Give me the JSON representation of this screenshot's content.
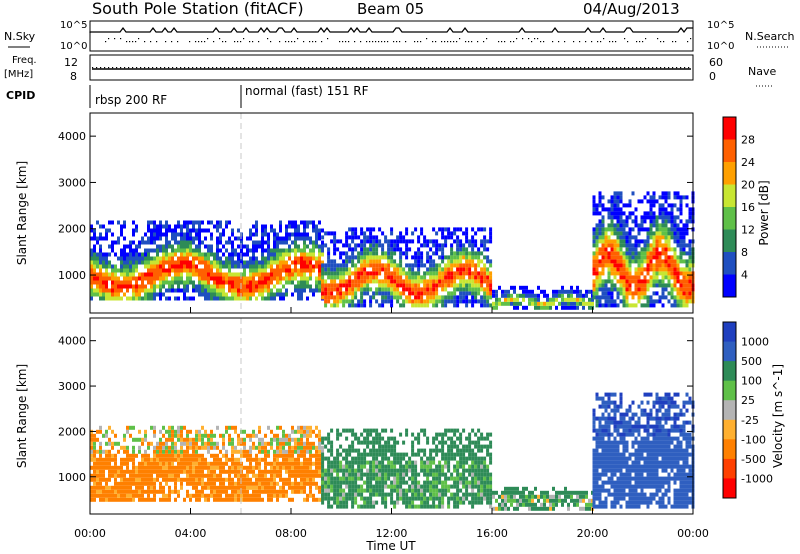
{
  "header": {
    "station": "South Pole Station (fitACF)",
    "beam": "Beam 05",
    "date": "04/Aug/2013"
  },
  "top_panels": {
    "nsky_label": "N.Sky",
    "nsearch_label": "N.Search",
    "freq_label": "Freq.",
    "freq_unit": "[MHz]",
    "nave_label": "Nave",
    "cpid_label": "CPID",
    "left_ticks_top": [
      "10^5",
      "10^0"
    ],
    "right_ticks_top": [
      "10^5",
      "10^0"
    ],
    "left_ticks_freq": [
      "12",
      "8"
    ],
    "right_ticks_nave": [
      "60",
      "0"
    ],
    "cpid_segments": [
      {
        "label": "rbsp 200 RF",
        "start_hour": 0,
        "end_hour": 6
      },
      {
        "label": "normal (fast) 151 RF",
        "start_hour": 6,
        "end_hour": 24
      }
    ]
  },
  "chart_data": [
    {
      "type": "heatmap",
      "title": "Power [dB]",
      "ylabel": "Slant Range [km]",
      "xlabel": "Time UT",
      "xlim_hours": [
        0,
        24
      ],
      "ylim": [
        180,
        4500
      ],
      "x_ticks": [
        "00:00",
        "04:00",
        "08:00",
        "12:00",
        "16:00",
        "20:00",
        "00:00"
      ],
      "y_ticks": [
        1000,
        2000,
        3000,
        4000
      ],
      "colorbar": {
        "label": "Power [dB]",
        "ticks": [
          "4",
          "8",
          "12",
          "16",
          "20",
          "24",
          "28"
        ],
        "colors": [
          "#0000ff",
          "#1f4fc0",
          "#2e8b57",
          "#5fc048",
          "#c8e632",
          "#ffa000",
          "#ff6000",
          "#ff0000"
        ]
      },
      "echo_regions": [
        {
          "start_hour": 0.0,
          "end_hour": 9.2,
          "range_low": 450,
          "range_high": 2100,
          "peak_db": 28
        },
        {
          "start_hour": 9.2,
          "end_hour": 16.0,
          "range_low": 300,
          "range_high": 2000,
          "peak_db": 28
        },
        {
          "start_hour": 16.0,
          "end_hour": 20.0,
          "range_low": 250,
          "range_high": 700,
          "peak_db": 18
        },
        {
          "start_hour": 20.0,
          "end_hour": 24.0,
          "range_low": 300,
          "range_high": 2800,
          "peak_db": 28
        }
      ]
    },
    {
      "type": "heatmap",
      "title": "Velocity [m s^-1]",
      "ylabel": "Slant Range [km]",
      "xlabel": "Time UT",
      "xlim_hours": [
        0,
        24
      ],
      "ylim": [
        180,
        4500
      ],
      "x_ticks": [
        "00:00",
        "04:00",
        "08:00",
        "12:00",
        "16:00",
        "20:00",
        "00:00"
      ],
      "y_ticks": [
        1000,
        2000,
        3000,
        4000
      ],
      "colorbar": {
        "label": "Velocity [m s^-1]",
        "ticks": [
          "1000",
          "500",
          "100",
          "25",
          "-25",
          "-100",
          "-500",
          "-1000"
        ],
        "colors": [
          "#1f3fbf",
          "#2f5fc0",
          "#2e8b57",
          "#5fc048",
          "#b4b4b4",
          "#ffb030",
          "#ff8000",
          "#ff4000",
          "#ff0000"
        ]
      },
      "echo_regions": [
        {
          "start_hour": 0.0,
          "end_hour": 9.2,
          "range_low": 450,
          "range_high": 2100,
          "velocity": -200
        },
        {
          "start_hour": 9.2,
          "end_hour": 16.0,
          "range_low": 300,
          "range_high": 2000,
          "velocity": 150
        },
        {
          "start_hour": 16.0,
          "end_hour": 20.0,
          "range_low": 250,
          "range_high": 700,
          "velocity": 100
        },
        {
          "start_hour": 20.0,
          "end_hour": 24.0,
          "range_low": 300,
          "range_high": 2800,
          "velocity": 800
        }
      ]
    }
  ]
}
